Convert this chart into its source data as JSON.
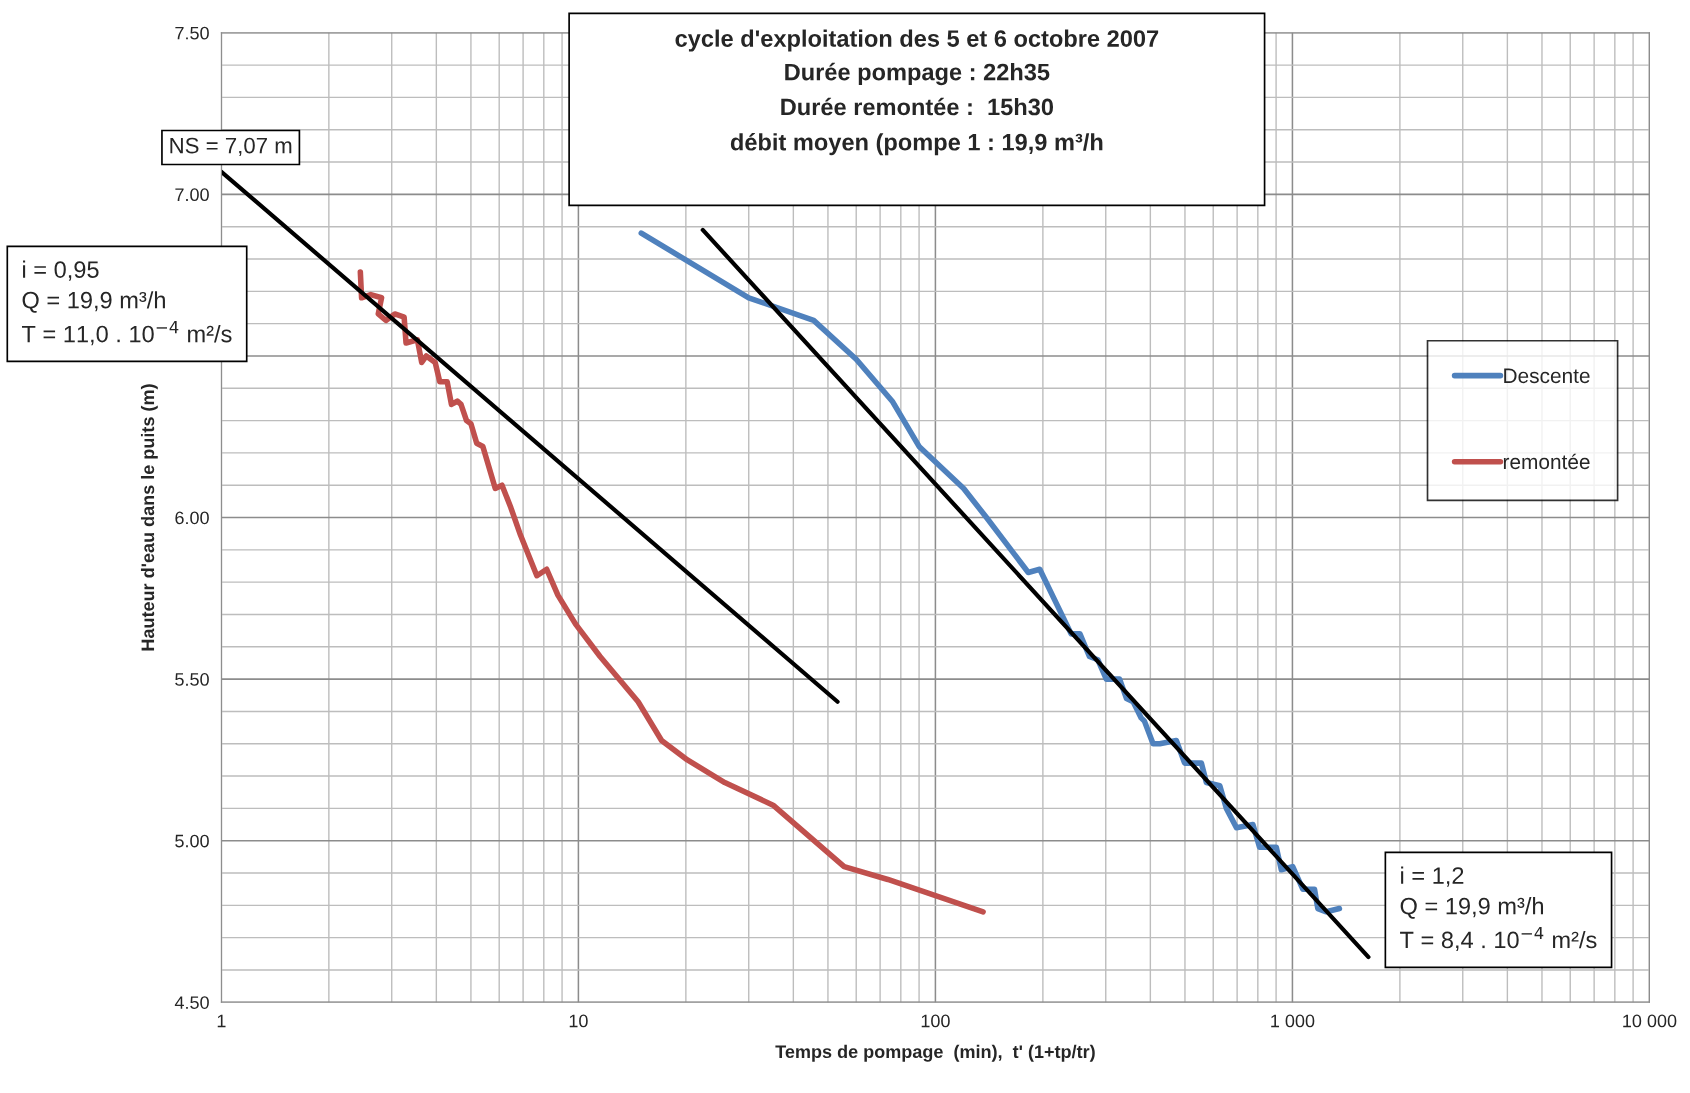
{
  "chart_data": {
    "type": "line",
    "title": "cycle d'exploitation des 5 et 6 octobre 2007",
    "subtitle": "Durée pompage : 22h35\nDurée remontée :  15h30\ndébit moyen (pompe 1 : 19,9 m³/h",
    "xlabel": "Temps de pompage  (min),  t' (1+tp/tr)",
    "ylabel": "Hauteur d'eau dans le puits (m)",
    "log": "x",
    "xlim": [
      1,
      10000
    ],
    "xticks": [
      1,
      10,
      100,
      {
        "value": 1000,
        "label": "1 000"
      },
      {
        "value": 10000,
        "label": "10 000"
      }
    ],
    "ylim": [
      4.5,
      7.5
    ],
    "yticks": [
      {
        "value": 4.5,
        "label": "4.50"
      },
      {
        "value": 5.0,
        "label": "5.00"
      },
      {
        "value": 5.5,
        "label": "5.50"
      },
      {
        "value": 6.0,
        "label": "6.00"
      },
      {
        "value": 6.5,
        "label": null
      },
      {
        "value": 7.0,
        "label": "7.00"
      },
      {
        "value": 7.5,
        "label": "7.50"
      }
    ],
    "grid": true,
    "legend": "right",
    "series": [
      {
        "name": "Descente",
        "color": "#4f81bd",
        "x": [
          15,
          30,
          45.6,
          60,
          75.7,
          90,
          120,
          139,
          182,
          196,
          240,
          254,
          270,
          285,
          301,
          328,
          343,
          358,
          377,
          385,
          407,
          425,
          473,
          499,
          556,
          574,
          626,
          653,
          697,
          775,
          809,
          901,
          931,
          1002,
          1069,
          1153,
          1178,
          1244,
          1354
        ],
        "values": [
          6.88,
          6.68,
          6.61,
          6.49,
          6.36,
          6.22,
          6.09,
          6.0,
          5.83,
          5.84,
          5.64,
          5.64,
          5.57,
          5.56,
          5.5,
          5.5,
          5.44,
          5.43,
          5.38,
          5.37,
          5.3,
          5.3,
          5.31,
          5.24,
          5.24,
          5.18,
          5.17,
          5.1,
          5.04,
          5.05,
          4.98,
          4.98,
          4.91,
          4.92,
          4.85,
          4.85,
          4.79,
          4.78,
          4.79
        ]
      },
      {
        "name": "remontée",
        "color": "#c0504d",
        "x": [
          2.45,
          2.47,
          2.62,
          2.81,
          2.75,
          2.89,
          3.06,
          3.25,
          3.29,
          3.54,
          3.64,
          3.75,
          3.97,
          4.09,
          4.29,
          4.41,
          4.58,
          4.69,
          4.86,
          5.0,
          5.19,
          5.4,
          5.85,
          6.11,
          6.47,
          6.86,
          7.65,
          8.15,
          8.76,
          9.82,
          11.5,
          14.7,
          17.1,
          20.2,
          25.7,
          35.1,
          55.5,
          73.6,
          136
        ],
        "values": [
          6.76,
          6.68,
          6.69,
          6.68,
          6.63,
          6.61,
          6.63,
          6.62,
          6.54,
          6.55,
          6.48,
          6.5,
          6.48,
          6.42,
          6.42,
          6.35,
          6.36,
          6.35,
          6.3,
          6.29,
          6.23,
          6.22,
          6.09,
          6.1,
          6.03,
          5.95,
          5.82,
          5.84,
          5.76,
          5.67,
          5.57,
          5.43,
          5.31,
          5.25,
          5.18,
          5.11,
          4.92,
          4.88,
          4.78
        ]
      },
      {
        "color": "#000000",
        "x": [
          1,
          53.2
        ],
        "values": [
          7.07,
          5.43
        ]
      },
      {
        "color": "#000000",
        "x": [
          22.3,
          1633
        ],
        "values": [
          6.89,
          4.64
        ]
      }
    ],
    "annotations": [
      "i = 0,95\nQ = 19,9 m³/h\nT = 11,0 . 10$^{−4}$ m²/s",
      "i = 1,2\nQ = 19,9 m³/h\nT = 8,4 . 10$^{−4}$ m²/s",
      {
        "text": "NS = 7,07 m",
        "x": 1,
        "y": 7.07
      }
    ]
  }
}
